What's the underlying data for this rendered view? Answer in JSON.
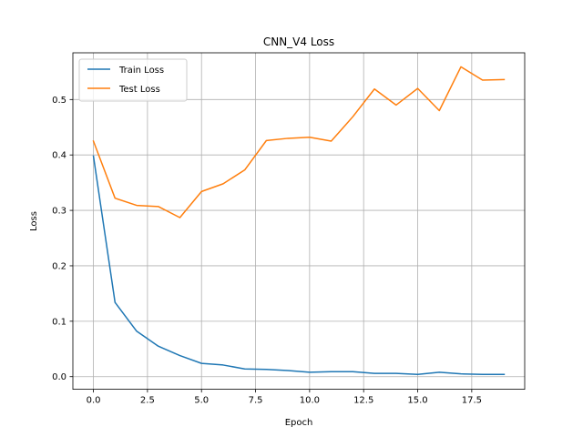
{
  "chart_data": {
    "type": "line",
    "title": "CNN_V4 Loss",
    "xlabel": "Epoch",
    "ylabel": "Loss",
    "xlim": [
      -0.95,
      19.95
    ],
    "ylim": [
      -0.0228,
      0.5843
    ],
    "grid": true,
    "legend_position": "top-left",
    "x": [
      0,
      1,
      2,
      3,
      4,
      5,
      6,
      7,
      8,
      9,
      10,
      11,
      12,
      13,
      14,
      15,
      16,
      17,
      18,
      19
    ],
    "x_ticks": [
      {
        "value": 0,
        "label": "0.0"
      },
      {
        "value": 2.5,
        "label": "2.5"
      },
      {
        "value": 5,
        "label": "5.0"
      },
      {
        "value": 7.5,
        "label": "7.5"
      },
      {
        "value": 10,
        "label": "10.0"
      },
      {
        "value": 12.5,
        "label": "12.5"
      },
      {
        "value": 15,
        "label": "15.0"
      },
      {
        "value": 17.5,
        "label": "17.5"
      }
    ],
    "y_ticks": [
      {
        "value": 0.0,
        "label": "0.0"
      },
      {
        "value": 0.1,
        "label": "0.1"
      },
      {
        "value": 0.2,
        "label": "0.2"
      },
      {
        "value": 0.3,
        "label": "0.3"
      },
      {
        "value": 0.4,
        "label": "0.4"
      },
      {
        "value": 0.5,
        "label": "0.5"
      }
    ],
    "series": [
      {
        "name": "Train Loss",
        "color": "#1f77b4",
        "values": [
          0.398,
          0.134,
          0.082,
          0.055,
          0.038,
          0.024,
          0.021,
          0.014,
          0.013,
          0.011,
          0.008,
          0.009,
          0.009,
          0.006,
          0.006,
          0.004,
          0.008,
          0.005,
          0.004,
          0.004
        ]
      },
      {
        "name": "Test Loss",
        "color": "#ff7f0e",
        "values": [
          0.425,
          0.322,
          0.309,
          0.307,
          0.287,
          0.334,
          0.348,
          0.373,
          0.426,
          0.43,
          0.432,
          0.425,
          0.469,
          0.519,
          0.49,
          0.52,
          0.48,
          0.559,
          0.535,
          0.536
        ]
      }
    ]
  }
}
